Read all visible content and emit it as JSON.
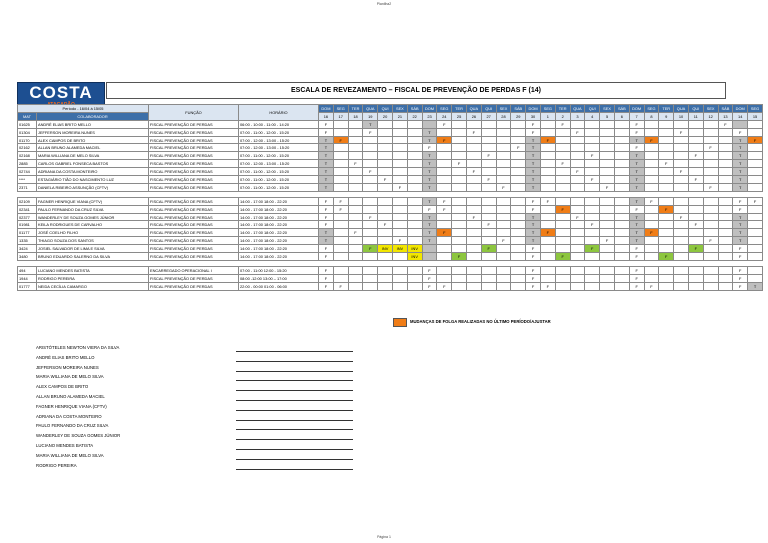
{
  "sheet_name": "Planilha2",
  "footer": "Página 1",
  "logo": {
    "brand": "COSTA",
    "sub": "ATACADÃO"
  },
  "title": "ESCALA DE REVEZAMENTO – FISCAL DE PREVENÇÃO DE PERDAS F (14)",
  "period_label": "Período - 16/04 à 15/05",
  "col_mat": "MAT",
  "col_colab": "COLABORADOR",
  "col_funcao": "FUNÇÃO",
  "col_horario": "HORÁRIO",
  "weekdays": [
    "DOM",
    "SEG",
    "TER",
    "QUA",
    "QUI",
    "SEX",
    "SÁB",
    "DOM",
    "SEG",
    "TER",
    "QUA",
    "QUI",
    "SEX",
    "SÁB",
    "DOM",
    "SEG",
    "TER",
    "QUA",
    "QUI",
    "SEX",
    "SÁB",
    "DOM",
    "SEG",
    "TER",
    "QUA",
    "QUI",
    "SEX",
    "SÁB",
    "DOM",
    "SEG"
  ],
  "days": [
    "16",
    "17",
    "18",
    "19",
    "20",
    "21",
    "22",
    "23",
    "24",
    "25",
    "26",
    "27",
    "28",
    "29",
    "30",
    "1",
    "2",
    "3",
    "4",
    "5",
    "6",
    "7",
    "8",
    "9",
    "10",
    "11",
    "12",
    "13",
    "14",
    "15"
  ],
  "rows": [
    {
      "mat": "01625",
      "name": "ANDRÉ ELIAS BRITO MELLO",
      "func": "FISCAL PREVENÇÃO DE PERDAS",
      "hor": "06:00 - 10:00 - 11:00 - 14:20",
      "cells": {
        "0": "F",
        "3": "T",
        "8": "F",
        "14": "F",
        "16": "F",
        "21": "F",
        "27": "F"
      }
    },
    {
      "mat": "01304",
      "name": "JEFFERSON MOREIRA NUNES",
      "func": "FISCAL PREVENÇÃO DE PERDAS",
      "hor": "07:00 - 11:00 - 12:00 - 15:20",
      "cells": {
        "0": "F",
        "3": "F",
        "7": "T",
        "10": "F",
        "14": "F",
        "17": "F",
        "21": "F",
        "24": "F",
        "28": "F"
      }
    },
    {
      "mat": "01170",
      "name": "ALEX CAMPOS DE BRITO",
      "func": "FISCAL PREVENÇÃO DE PERDAS",
      "hor": "07:00 - 12:00 - 13:00 - 15:20",
      "cells": {
        "0": "T",
        "1": "F:o",
        "7": "T",
        "8": "F:o",
        "14": "T",
        "15": "F:o",
        "21": "T",
        "22": "F:o",
        "28": "T",
        "29": "F:o"
      }
    },
    {
      "mat": "02162",
      "name": "ALLAN BRUNO ALAMEDA MACIEL",
      "func": "FISCAL PREVENÇÃO DE PERDAS",
      "hor": "07:00 - 12:00 - 13:00 - 15:20",
      "cells": {
        "0": "T",
        "7": "F",
        "13": "F",
        "14": "T",
        "21": "F",
        "26": "F",
        "28": "T"
      }
    },
    {
      "mat": "02168",
      "name": "MARIA WILLIANA DE MELO SILVA",
      "func": "FISCAL PREVENÇÃO DE PERDAS",
      "hor": "07:00 - 11:00 - 12:00 - 15:20",
      "cells": {
        "0": "T",
        "7": "T",
        "11": "F",
        "14": "T",
        "18": "F",
        "21": "T",
        "25": "F",
        "28": "T"
      }
    },
    {
      "mat": "2885",
      "name": "CARLOS GABRIEL FONSECA BASTOS",
      "func": "FISCAL PREVENÇÃO DE PERDAS",
      "hor": "07:00 - 12:00 - 13:00 - 15:20",
      "cells": {
        "0": "T",
        "2": "F",
        "7": "T",
        "9": "F",
        "14": "T",
        "16": "F",
        "21": "T",
        "23": "F",
        "28": "T"
      }
    },
    {
      "mat": "02744",
      "name": "ADRIANA DA COSTA MONTEIRO",
      "func": "FISCAL PREVENÇÃO DE PERDAS",
      "hor": "07:00 - 11:00 - 12:00 - 15:20",
      "cells": {
        "0": "T",
        "3": "F",
        "7": "T",
        "10": "F",
        "14": "T",
        "17": "F",
        "21": "T",
        "24": "F",
        "28": "T"
      }
    },
    {
      "mat": "****",
      "name": "ESTAGIÁRIO TIÃO DO NASCIMENTO LUZ",
      "func": "FISCAL PREVENÇÃO DE PERDAS",
      "hor": "07:00 - 11:00 - 12:00 - 15:20",
      "cells": {
        "0": "T",
        "4": "F",
        "7": "T",
        "11": "F",
        "14": "T",
        "18": "F",
        "21": "T",
        "25": "F",
        "28": "T"
      }
    },
    {
      "mat": "2371",
      "name": "DANIELA RIBEIRO ASSUNÇÃO (CFTV)",
      "func": "FISCAL PREVENÇÃO DE PERDAS",
      "hor": "07:00 - 11:00 - 12:00 - 15:20",
      "cells": {
        "0": "T",
        "5": "F",
        "7": "T",
        "12": "F",
        "14": "T",
        "19": "F",
        "21": "T",
        "26": "F",
        "28": "T"
      }
    },
    {
      "gap": true
    },
    {
      "mat": "02109",
      "name": "FAGNER HENRIQUE VIANA (CFTV)",
      "func": "FISCAL PREVENÇÃO DE PERDAS",
      "hor": "14:00 - 17:00 18:00 - 22:20",
      "cells": {
        "0": "F",
        "1": "F",
        "7": "T",
        "8": "F",
        "14": "F",
        "15": "F",
        "21": "T",
        "22": "F",
        "28": "F",
        "29": "F"
      }
    },
    {
      "mat": "02341",
      "name": "PAULO FERNANDO DA CRUZ SILVA",
      "func": "FISCAL PREVENÇÃO DE PERDAS",
      "hor": "14:00 - 17:00 18:00 - 22:20",
      "cells": {
        "0": "F",
        "1": "F",
        "7": "F",
        "8": "F",
        "14": "F",
        "16": "F:o",
        "21": "F",
        "23": "F:o",
        "28": "F"
      }
    },
    {
      "mat": "02377",
      "name": "WANDERLEY DE SOUZA GOMES JÚNIOR",
      "func": "FISCAL PREVENÇÃO DE PERDAS",
      "hor": "14:00 - 17:00 18:00 - 22:20",
      "cells": {
        "0": "F",
        "3": "F",
        "7": "T",
        "10": "F",
        "14": "T",
        "17": "F",
        "21": "T",
        "24": "F",
        "28": "T"
      }
    },
    {
      "mat": "01981",
      "name": "KEILA RODRIGUES DE CARVALHO",
      "func": "FISCAL PREVENÇÃO DE PERDAS",
      "hor": "14:00 - 17:00 18:00 - 22:20",
      "cells": {
        "0": "F",
        "4": "F",
        "7": "T",
        "11": "F",
        "14": "T",
        "18": "F",
        "21": "T",
        "25": "F",
        "28": "T"
      }
    },
    {
      "mat": "01177",
      "name": "JOSÉ COELHO FILHO",
      "func": "FISCAL PREVENÇÃO DE PERDAS",
      "hor": "14:00 - 17:00 18:00 - 22:20",
      "cells": {
        "0": "T",
        "2": "F",
        "7": "T",
        "8": "F:o",
        "14": "T",
        "15": "F:o",
        "21": "T",
        "22": "F:o",
        "28": "T"
      }
    },
    {
      "mat": "1335",
      "name": "THIAGO SOUZA DOS SANTOS",
      "func": "FISCAL PREVENÇÃO DE PERDAS",
      "hor": "14:00 - 17:00 18:00 - 22:20",
      "cells": {
        "0": "T",
        "5": "F",
        "7": "T",
        "12": "F",
        "14": "T",
        "19": "F",
        "21": "T",
        "26": "F",
        "28": "T"
      }
    },
    {
      "mat": "3424",
      "name": "JOSIEL SALVADOR DE LIMA E SILVA",
      "func": "FISCAL PREVENÇÃO DE PERDAS",
      "hor": "14:00 - 17:00 18:00 - 22:20",
      "cells": {
        "0": "F",
        "3": "F:g",
        "4": "INV:y",
        "5": "INV:y",
        "6": "INV:y",
        "11": "F:g",
        "14": "F",
        "18": "F:g",
        "21": "F",
        "25": "F:g",
        "28": "F"
      }
    },
    {
      "mat": "3480",
      "name": "BRUNO EDUARDO SALERNO DA SILVA",
      "func": "FISCAL PREVENÇÃO DE PERDAS",
      "hor": "14:00 - 17:00 18:00 - 22:20",
      "cells": {
        "0": "F",
        "6": "INV:y",
        "9": "F:g",
        "14": "F",
        "16": "F:g",
        "21": "F",
        "23": "F:g",
        "28": "F"
      }
    },
    {
      "gap": true
    },
    {
      "mat": "494",
      "name": "LUCIANO MENDES BATISTA",
      "func": "ENCARREGADO OPERACIONAL I",
      "hor": "07:00 - 11:00 12:00 - 15:20",
      "cells": {
        "0": "F",
        "7": "F",
        "14": "F",
        "21": "F",
        "28": "F"
      }
    },
    {
      "mat": "1944",
      "name": "RODRIGO PEREIRA",
      "func": "FISCAL PREVENÇÃO DE PERDAS",
      "hor": "08:00 -12:00 13:00 – 17:00",
      "cells": {
        "0": "F",
        "7": "F",
        "14": "F",
        "21": "F",
        "28": "F"
      }
    },
    {
      "mat": "01777",
      "name": "NEIDA CECÍLIA CAMARGO",
      "func": "FISCAL PREVENÇÃO DE PERDAS",
      "hor": "22:00 - 00:00 01:00 - 06:00",
      "cells": {
        "0": "F",
        "1": "F",
        "7": "F",
        "8": "F",
        "14": "F",
        "15": "F",
        "21": "F",
        "22": "F",
        "28": "F",
        "29": "T"
      }
    }
  ],
  "legend": {
    "label": "MUDANÇAS DE FOLGA REALIZADAS NO ÚLTIMO PERÍODO/AJUSTAR",
    "color": "#f07d17"
  },
  "signatures": [
    "ARISTÓTELES NEWTON VIERA DA SILVA",
    "ANDRÉ ELIAS BRITO MELLO",
    "JEFFERSON MOREIRA NUNES",
    "MARIA WILLIANA DE MELO SILVA",
    "ALEX CAMPOS DE BRITO",
    "ALLAN BRUNO ALAMEDA MACIEL",
    "FAGNER HENRIQUE VIANA (CFTV)",
    "ADRIANA DA COSTA MONTEIRO",
    "PAULO  FERNANDO DA CRUZ SILVA",
    "WANDERLEY DE SOUZA GOMES JÚNIOR",
    "LUCIANO MENDES BATISTA",
    "MARIA WILLIANA DE MELO SILVA",
    "RODRIGO PEREIRA"
  ]
}
